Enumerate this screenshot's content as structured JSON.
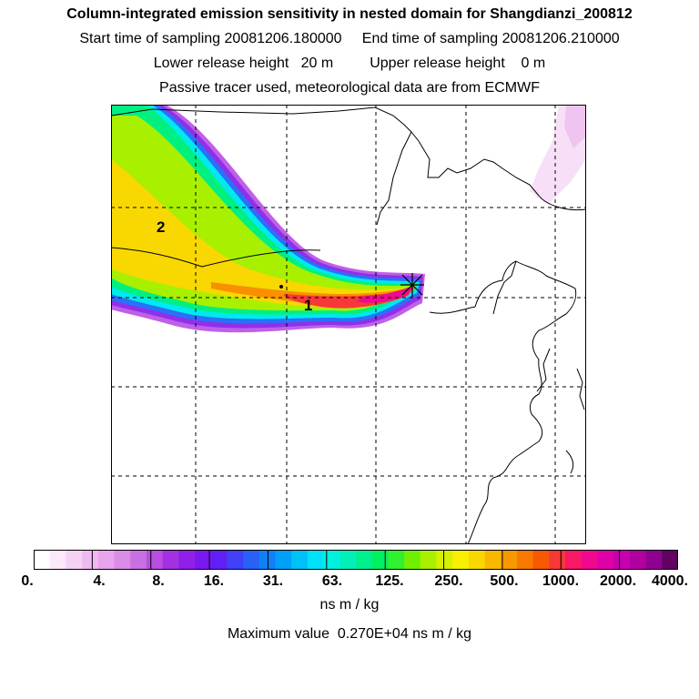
{
  "header": {
    "title": "Column-integrated emission sensitivity in nested domain for Shangdianzi_200812",
    "sampling_line": "Start time of sampling 20081206.180000     End time of sampling 20081206.210000",
    "release_line": "Lower release height   20 m         Upper release height    0 m",
    "tracer_line": "Passive tracer used, meteorological data are from ECMWF"
  },
  "map": {
    "plume_labels": [
      "2",
      "1"
    ],
    "receptor_marker": "receptor-x-icon"
  },
  "colorbar": {
    "tick_labels": [
      "0.",
      "4.",
      "8.",
      "16.",
      "31.",
      "63.",
      "125.",
      "250.",
      "500.",
      "1000.",
      "2000.",
      "4000."
    ],
    "units": "ns m / kg",
    "colors": [
      "#ffffff",
      "#fbe8fb",
      "#f5d2f5",
      "#efbaf0",
      "#e8a4ec",
      "#d98de6",
      "#c870e2",
      "#b84fe0",
      "#a430e2",
      "#9020e8",
      "#7a18f0",
      "#6020f5",
      "#4040f8",
      "#2860f8",
      "#1080f8",
      "#00a0f8",
      "#00c0f8",
      "#00e0f8",
      "#00f0e0",
      "#00f0b8",
      "#00f090",
      "#00f060",
      "#30f030",
      "#70f000",
      "#a8f000",
      "#d8f000",
      "#f8f000",
      "#f8d800",
      "#f8b800",
      "#f89800",
      "#f87800",
      "#f85800",
      "#f83838",
      "#f81868",
      "#f00890",
      "#e000a8",
      "#c800b0",
      "#b000a0",
      "#900090",
      "#600060"
    ]
  },
  "max_value_line": "Maximum value  0.270E+04 ns m / kg"
}
